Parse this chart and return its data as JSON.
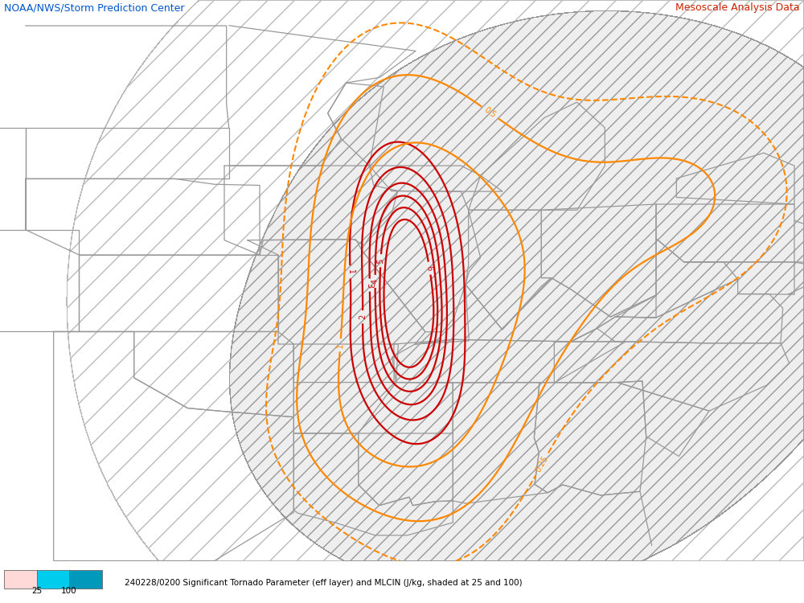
{
  "title_left": "NOAA/NWS/Storm Prediction Center",
  "title_right": "Mesoscale Analysis Data",
  "bottom_label": "240228/0200 Significant Tornado Parameter (eff layer) and MLCIN (J/kg, shaded at 25 and 100)",
  "colorbar_labels": [
    "25",
    "100"
  ],
  "colorbar_colors_hex": [
    "#ffd0d0",
    "#00ccee",
    "#0099bb"
  ],
  "background_color": "#ffffff",
  "state_line_color": "#999999",
  "stp_color": "#cc0000",
  "cin_color": "#ff8800",
  "hatch_light_face": "#c8e8f0",
  "hatch_light_edge": "#aaaaaa",
  "hatch_dark_face": "#c8e8f0",
  "hatch_dark_edge": "#888888",
  "figsize": [
    10.0,
    7.5
  ],
  "dpi": 100,
  "xlim": [
    -105,
    -75
  ],
  "ylim": [
    28,
    50
  ]
}
